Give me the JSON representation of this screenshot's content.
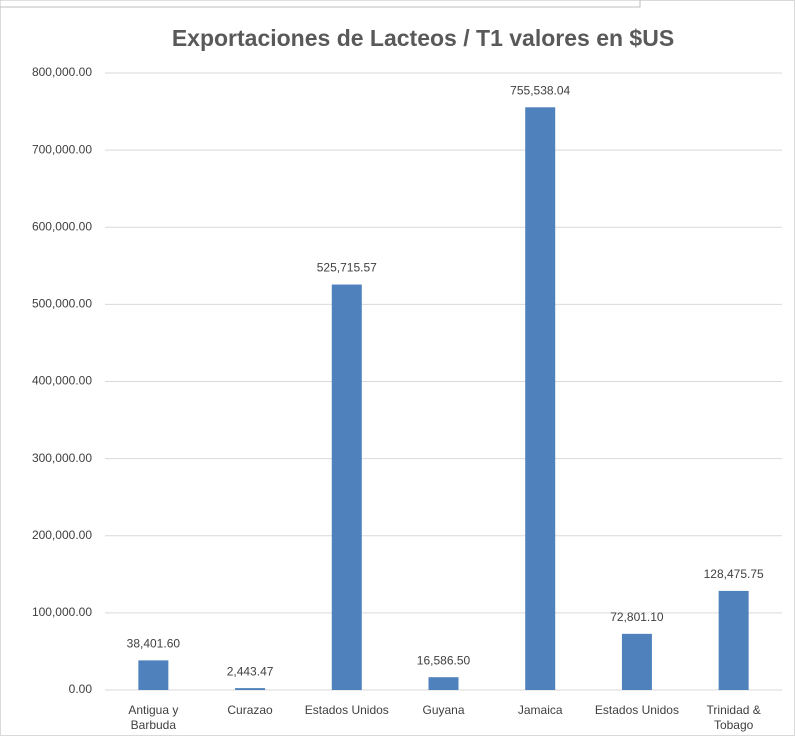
{
  "chart_data": {
    "type": "bar",
    "title": "Exportaciones de Lacteos  /  T1 valores en $US",
    "categories": [
      "Antigua y Barbuda",
      "Curazao",
      "Estados Unidos",
      "Guyana",
      "Jamaica",
      "Estados Unidos",
      "Trinidad & Tobago"
    ],
    "values": [
      38401.6,
      2443.47,
      525715.57,
      16586.5,
      755538.04,
      72801.1,
      128475.75
    ],
    "value_labels": [
      "38,401.60",
      "2,443.47",
      "525,715.57",
      "16,586.50",
      "755,538.04",
      "72,801.10",
      "128,475.75"
    ],
    "color": "#4f81bd",
    "ylim": [
      0,
      800000
    ],
    "yticks": [
      {
        "value": 0,
        "label": "0.00"
      },
      {
        "value": 100000,
        "label": "100,000.00"
      },
      {
        "value": 200000,
        "label": "200,000.00"
      },
      {
        "value": 300000,
        "label": "300,000.00"
      },
      {
        "value": 400000,
        "label": "400,000.00"
      },
      {
        "value": 500000,
        "label": "500,000.00"
      },
      {
        "value": 600000,
        "label": "600,000.00"
      },
      {
        "value": 700000,
        "label": "700,000.00"
      },
      {
        "value": 800000,
        "label": "800,000.00"
      }
    ],
    "grid": true
  }
}
